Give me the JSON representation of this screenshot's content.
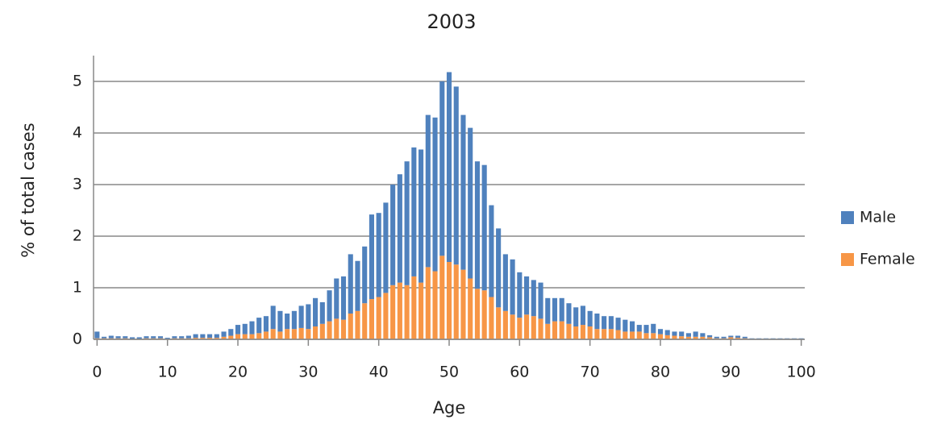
{
  "chart_data": {
    "type": "stacked-bar",
    "title": "2003",
    "xlabel": "Age",
    "ylabel": "% of total cases",
    "x": [
      0,
      1,
      2,
      3,
      4,
      5,
      6,
      7,
      8,
      9,
      10,
      11,
      12,
      13,
      14,
      15,
      16,
      17,
      18,
      19,
      20,
      21,
      22,
      23,
      24,
      25,
      26,
      27,
      28,
      29,
      30,
      31,
      32,
      33,
      34,
      35,
      36,
      37,
      38,
      39,
      40,
      41,
      42,
      43,
      44,
      45,
      46,
      47,
      48,
      49,
      50,
      51,
      52,
      53,
      54,
      55,
      56,
      57,
      58,
      59,
      60,
      61,
      62,
      63,
      64,
      65,
      66,
      67,
      68,
      69,
      70,
      71,
      72,
      73,
      74,
      75,
      76,
      77,
      78,
      79,
      80,
      81,
      82,
      83,
      84,
      85,
      86,
      87,
      88,
      89,
      90,
      91,
      92,
      93,
      94,
      95,
      96,
      97,
      98,
      99,
      100
    ],
    "series": [
      {
        "name": "Male",
        "color": "#4f81bd",
        "values": [
          0.13,
          0.03,
          0.05,
          0.04,
          0.04,
          0.03,
          0.03,
          0.04,
          0.04,
          0.04,
          0.02,
          0.04,
          0.04,
          0.05,
          0.07,
          0.07,
          0.07,
          0.07,
          0.1,
          0.13,
          0.18,
          0.2,
          0.25,
          0.3,
          0.3,
          0.45,
          0.4,
          0.3,
          0.35,
          0.43,
          0.48,
          0.55,
          0.42,
          0.6,
          0.78,
          0.84,
          1.15,
          0.97,
          1.1,
          1.64,
          1.63,
          1.75,
          1.95,
          2.1,
          2.4,
          2.5,
          2.58,
          2.95,
          2.98,
          3.38,
          3.68,
          3.45,
          3.0,
          2.92,
          2.47,
          2.43,
          1.78,
          1.53,
          1.1,
          1.07,
          0.88,
          0.74,
          0.7,
          0.7,
          0.5,
          0.45,
          0.45,
          0.4,
          0.37,
          0.37,
          0.3,
          0.3,
          0.25,
          0.25,
          0.24,
          0.23,
          0.2,
          0.13,
          0.16,
          0.18,
          0.1,
          0.1,
          0.08,
          0.09,
          0.07,
          0.1,
          0.07,
          0.04,
          0.03,
          0.03,
          0.03,
          0.04,
          0.03,
          0.01,
          0.01,
          0.01,
          0.01,
          0.01,
          0.01,
          0.01,
          0.01
        ]
      },
      {
        "name": "Female",
        "color": "#f79646",
        "values": [
          0.02,
          0.02,
          0.02,
          0.02,
          0.02,
          0.01,
          0.01,
          0.02,
          0.02,
          0.02,
          0.01,
          0.02,
          0.02,
          0.02,
          0.03,
          0.03,
          0.03,
          0.03,
          0.05,
          0.07,
          0.1,
          0.1,
          0.1,
          0.12,
          0.15,
          0.2,
          0.15,
          0.2,
          0.2,
          0.22,
          0.2,
          0.25,
          0.3,
          0.35,
          0.4,
          0.38,
          0.5,
          0.55,
          0.7,
          0.78,
          0.82,
          0.9,
          1.05,
          1.1,
          1.05,
          1.22,
          1.1,
          1.4,
          1.32,
          1.62,
          1.5,
          1.45,
          1.35,
          1.18,
          0.98,
          0.95,
          0.82,
          0.62,
          0.55,
          0.48,
          0.42,
          0.48,
          0.45,
          0.4,
          0.3,
          0.35,
          0.35,
          0.3,
          0.25,
          0.28,
          0.25,
          0.2,
          0.2,
          0.2,
          0.18,
          0.15,
          0.15,
          0.15,
          0.12,
          0.12,
          0.1,
          0.08,
          0.07,
          0.06,
          0.05,
          0.05,
          0.05,
          0.04,
          0.02,
          0.02,
          0.04,
          0.03,
          0.02,
          0.01,
          0.01,
          0.01,
          0.01,
          0.01,
          0.01,
          0.01,
          0.01
        ]
      }
    ],
    "xlim": [
      -0.5,
      100.5
    ],
    "xticks": [
      0,
      10,
      20,
      30,
      40,
      50,
      60,
      70,
      80,
      90,
      100
    ],
    "ylim": [
      0,
      5.5
    ],
    "yticks": [
      0,
      1,
      2,
      3,
      4,
      5
    ],
    "grid": true,
    "legend": "right"
  }
}
